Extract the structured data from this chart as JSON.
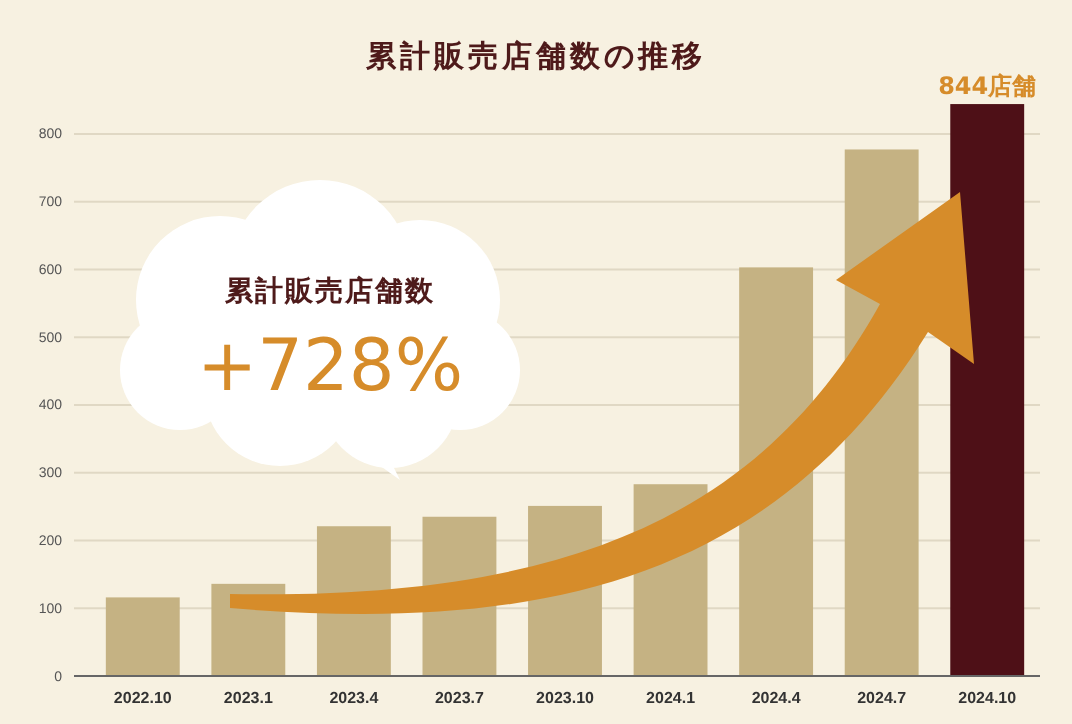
{
  "chart_data": {
    "type": "bar",
    "title": "累計販売店舗数の推移",
    "categories": [
      "2022.10",
      "2023.1",
      "2023.4",
      "2023.7",
      "2023.10",
      "2024.1",
      "2024.4",
      "2024.7",
      "2024.10"
    ],
    "values": [
      116,
      136,
      221,
      235,
      251,
      283,
      603,
      777,
      844
    ],
    "colors": [
      "#c5b283",
      "#c5b283",
      "#c5b283",
      "#c5b283",
      "#c5b283",
      "#c5b283",
      "#c5b283",
      "#c5b283",
      "#4e1017"
    ],
    "value_labels": [
      null,
      null,
      null,
      null,
      null,
      null,
      null,
      null,
      "844店舗"
    ],
    "ylim": [
      0,
      850
    ],
    "yticks": [
      0,
      100,
      200,
      300,
      400,
      500,
      600,
      700,
      800
    ],
    "grid": "y",
    "annotations": [
      "累計販売店舗数",
      "+728%"
    ]
  }
}
